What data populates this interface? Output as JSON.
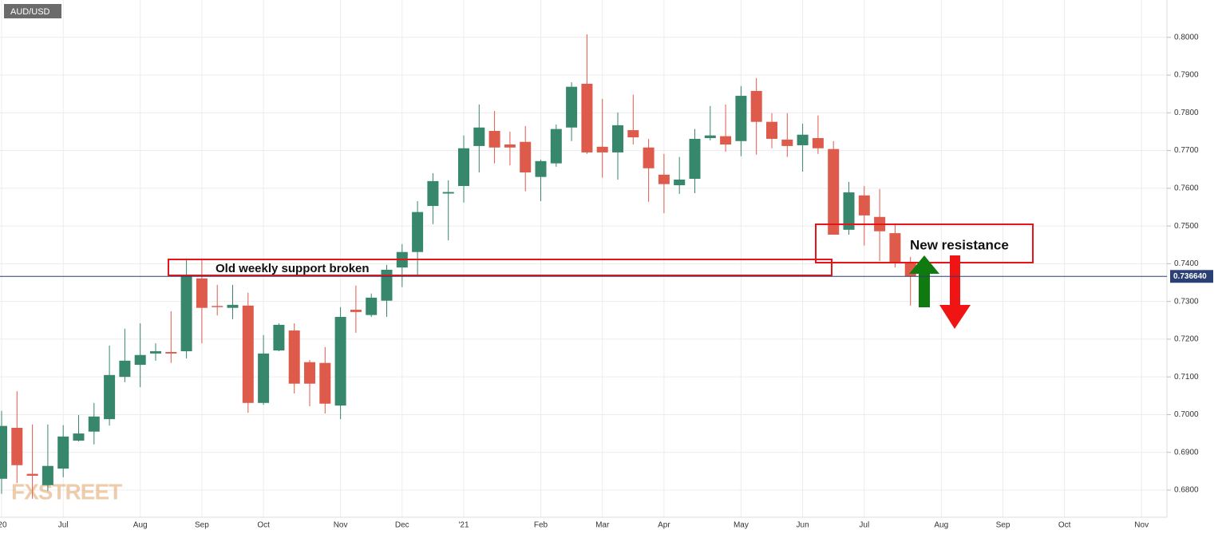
{
  "chart_data": {
    "type": "candlestick",
    "title": "AUD/USD",
    "watermark": "FXSTREET",
    "categories": [
      "'20",
      null,
      null,
      null,
      "Jul",
      null,
      null,
      null,
      null,
      "Aug",
      null,
      null,
      null,
      "Sep",
      null,
      null,
      null,
      "Oct",
      null,
      null,
      null,
      null,
      "Nov",
      null,
      null,
      null,
      "Dec",
      null,
      null,
      null,
      "'21",
      null,
      null,
      null,
      null,
      "Feb",
      null,
      null,
      null,
      "Mar",
      null,
      null,
      null,
      "Apr",
      null,
      null,
      null,
      null,
      "May",
      null,
      null,
      null,
      "Jun",
      null,
      null,
      null,
      "Jul",
      null,
      null,
      null,
      null,
      "Aug",
      null,
      null,
      null,
      "Sep",
      null,
      null,
      null,
      "Oct",
      null,
      null,
      null,
      null,
      "Nov",
      null
    ],
    "open": [
      0.683,
      0.6965,
      0.6843,
      0.6813,
      0.6857,
      0.6931,
      0.6955,
      0.6988,
      0.71,
      0.7132,
      0.7162,
      0.7166,
      0.7168,
      0.7361,
      0.7288,
      0.7283,
      0.7289,
      0.7031,
      0.717,
      0.7223,
      0.7139,
      0.7137,
      0.7024,
      0.7278,
      0.7264,
      0.7302,
      0.739,
      0.7431,
      0.7553,
      0.7586,
      0.7606,
      0.7712,
      0.7752,
      0.7716,
      0.7723,
      0.763,
      0.7666,
      0.7761,
      0.7877,
      0.771,
      0.7695,
      0.7754,
      0.7708,
      0.7636,
      0.7608,
      0.7625,
      0.7733,
      0.7738,
      0.7725,
      0.7858,
      0.7776,
      0.7729,
      0.7714,
      0.7733,
      0.7704,
      0.749,
      0.7581,
      0.7524,
      0.7481,
      0.7401,
      null,
      null,
      null,
      null,
      null,
      null,
      null,
      null,
      null,
      null,
      null,
      null,
      null,
      null,
      null,
      null
    ],
    "high": [
      0.701,
      0.7062,
      0.6974,
      0.6974,
      0.6972,
      0.6999,
      0.7031,
      0.7183,
      0.7228,
      0.7242,
      0.7189,
      0.7274,
      0.7414,
      0.7414,
      0.7344,
      0.7344,
      0.7323,
      0.7211,
      0.7242,
      0.7242,
      0.7145,
      0.7179,
      0.7285,
      0.7342,
      0.7321,
      0.7397,
      0.7452,
      0.7566,
      0.764,
      0.7621,
      0.774,
      0.7822,
      0.7805,
      0.775,
      0.7765,
      0.7676,
      0.7769,
      0.7881,
      0.8008,
      0.7837,
      0.7801,
      0.7848,
      0.7731,
      0.7691,
      0.7683,
      0.7757,
      0.7818,
      0.7822,
      0.7871,
      0.7892,
      0.7799,
      0.7799,
      0.7771,
      0.7793,
      0.7725,
      0.7617,
      0.7606,
      0.7598,
      0.7507,
      0.7418,
      null,
      null,
      null,
      null,
      null,
      null,
      null,
      null,
      null,
      null,
      null,
      null,
      null,
      null,
      null,
      null
    ],
    "low": [
      0.679,
      0.6819,
      0.6777,
      0.6798,
      0.6834,
      0.6929,
      0.6921,
      0.6971,
      0.7086,
      0.7073,
      0.7143,
      0.7137,
      0.7149,
      0.7189,
      0.7263,
      0.7253,
      0.7005,
      0.7026,
      0.7168,
      0.7056,
      0.7022,
      0.7003,
      0.6988,
      0.7217,
      0.7259,
      0.7259,
      0.7338,
      0.7369,
      0.7505,
      0.7462,
      0.7562,
      0.7642,
      0.7666,
      0.7661,
      0.7592,
      0.7566,
      0.7657,
      0.7725,
      0.7691,
      0.7628,
      0.7623,
      0.7716,
      0.7564,
      0.7534,
      0.7585,
      0.7587,
      0.7727,
      0.7697,
      0.7685,
      0.7689,
      0.7706,
      0.7683,
      0.7644,
      0.7691,
      0.7477,
      0.7477,
      0.7448,
      0.7407,
      0.739,
      0.7289,
      null,
      null,
      null,
      null,
      null,
      null,
      null,
      null,
      null,
      null,
      null,
      null,
      null,
      null,
      null,
      null
    ],
    "close": [
      0.697,
      0.6866,
      0.6838,
      0.6864,
      0.6942,
      0.695,
      0.6995,
      0.7105,
      0.7143,
      0.7158,
      0.7168,
      0.7162,
      0.7371,
      0.7283,
      0.7285,
      0.7291,
      0.7031,
      0.7162,
      0.7238,
      0.7082,
      0.7082,
      0.7029,
      0.7259,
      0.7272,
      0.731,
      0.7384,
      0.7431,
      0.7537,
      0.7619,
      0.759,
      0.7706,
      0.7761,
      0.7708,
      0.7708,
      0.7642,
      0.7672,
      0.7757,
      0.7869,
      0.7695,
      0.7695,
      0.7767,
      0.7735,
      0.7653,
      0.7611,
      0.7623,
      0.7731,
      0.774,
      0.7716,
      0.7845,
      0.7776,
      0.7731,
      0.7712,
      0.7742,
      0.7706,
      0.7477,
      0.7589,
      0.7528,
      0.7486,
      0.7401,
      0.7366,
      null,
      null,
      null,
      null,
      null,
      null,
      null,
      null,
      null,
      null,
      null,
      null,
      null,
      null,
      null,
      null
    ],
    "up_color": "#36876c",
    "down_color": "#de5b4b",
    "ylim": [
      0.6728,
      0.8099
    ],
    "yticks": [
      {
        "value": 0.68,
        "label": "0.6800"
      },
      {
        "value": 0.69,
        "label": "0.6900"
      },
      {
        "value": 0.7,
        "label": "0.7000"
      },
      {
        "value": 0.71,
        "label": "0.7100"
      },
      {
        "value": 0.72,
        "label": "0.7200"
      },
      {
        "value": 0.73,
        "label": "0.7300"
      },
      {
        "value": 0.74,
        "label": "0.7400"
      },
      {
        "value": 0.75,
        "label": "0.7500"
      },
      {
        "value": 0.76,
        "label": "0.7600"
      },
      {
        "value": 0.77,
        "label": "0.7700"
      },
      {
        "value": 0.78,
        "label": "0.7800"
      },
      {
        "value": 0.79,
        "label": "0.7900"
      },
      {
        "value": 0.8,
        "label": "0.8000"
      }
    ],
    "grid": true,
    "price_line": {
      "value": 0.73664,
      "label": "0.736640",
      "color": "#2a3f73"
    },
    "annotations": [
      "Old weekly support broken",
      "New resistance"
    ]
  }
}
